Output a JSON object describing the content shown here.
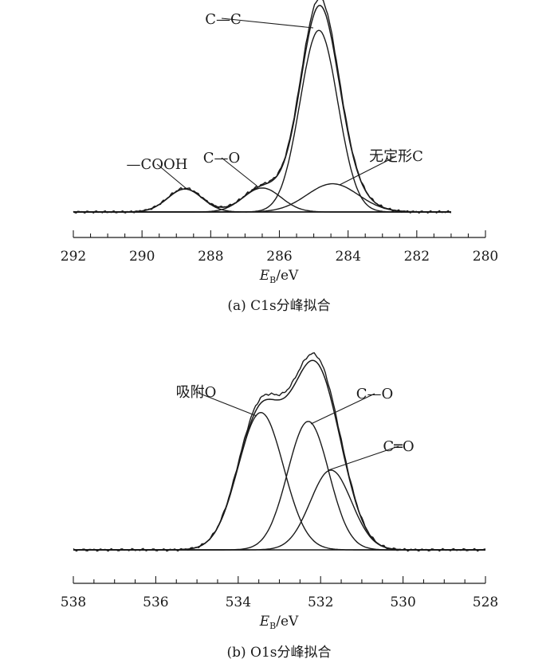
{
  "chart_data": [
    {
      "type": "line",
      "caption": "(a) C1s分峰拟合",
      "xlabel_main": "E",
      "xlabel_sub": "B",
      "xlabel_unit": "/eV",
      "xlim": [
        292,
        280
      ],
      "ylim": [
        0,
        1.0
      ],
      "x_ticks": [
        292,
        290,
        288,
        286,
        284,
        282,
        280
      ],
      "x_tick_labels": [
        "292",
        "290",
        "288",
        "286",
        "284",
        "282",
        "280"
      ],
      "background_level": 0.0,
      "peaks": [
        {
          "name": "—COOH",
          "center": 288.75,
          "height": 0.11,
          "sigma": 0.5
        },
        {
          "name": "C—O",
          "center": 286.5,
          "height": 0.115,
          "sigma": 0.55
        },
        {
          "name": "C—C",
          "center": 284.85,
          "height": 0.87,
          "sigma": 0.55
        },
        {
          "name": "无定形C",
          "center": 284.45,
          "height": 0.135,
          "sigma": 0.75
        }
      ],
      "annotations": [
        {
          "text": "C—C",
          "peak": "C—C"
        },
        {
          "text": "—COOH",
          "peak": "—COOH"
        },
        {
          "text": "C—O",
          "peak": "C—O"
        },
        {
          "text": "无定形C",
          "peak": "无定形C"
        }
      ]
    },
    {
      "type": "line",
      "caption": "(b) O1s分峰拟合",
      "xlabel_main": "E",
      "xlabel_sub": "B",
      "xlabel_unit": "/eV",
      "xlim": [
        538,
        528
      ],
      "ylim": [
        0,
        1.0
      ],
      "x_ticks": [
        538,
        536,
        534,
        532,
        530,
        528
      ],
      "x_tick_labels": [
        "538",
        "536",
        "534",
        "532",
        "530",
        "528"
      ],
      "background_level": 0.0,
      "peaks": [
        {
          "name": "吸附O",
          "center": 533.45,
          "height": 0.62,
          "sigma": 0.55
        },
        {
          "name": "C—O",
          "center": 532.3,
          "height": 0.58,
          "sigma": 0.5
        },
        {
          "name": "C═O",
          "center": 531.75,
          "height": 0.36,
          "sigma": 0.5
        }
      ],
      "annotations": [
        {
          "text": "吸附O",
          "peak": "吸附O"
        },
        {
          "text": "C—O",
          "peak": "C—O"
        },
        {
          "text": "C═O",
          "peak": "C═O"
        }
      ]
    }
  ]
}
